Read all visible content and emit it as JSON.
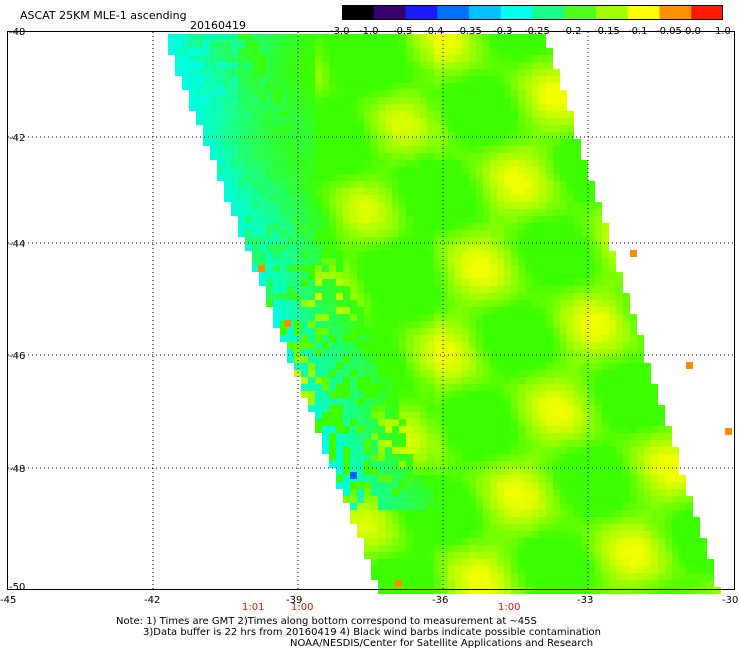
{
  "header": {
    "title": "ASCAT 25KM MLE-1 ascending",
    "date": "20160419"
  },
  "colorbar": {
    "labels": [
      "-3.0",
      "-1.0",
      "-0.5",
      "-0.4",
      "-0.35",
      "-0.3",
      "-0.25",
      "-0.2",
      "-0.15",
      "-0.1",
      "-0.05",
      "0.0",
      "1.0"
    ],
    "colors": [
      "#000000",
      "#3a006b",
      "#1a1aff",
      "#0070ff",
      "#00c0ff",
      "#00ffee",
      "#18ff88",
      "#4dff1a",
      "#a0ff00",
      "#ffff00",
      "#ff9000",
      "#ff1a00"
    ]
  },
  "axes": {
    "lat_labels": [
      "-40",
      "-42",
      "-44",
      "-46",
      "-48",
      "-50"
    ],
    "lon_labels": [
      "-45",
      "-42",
      "-39",
      "-36",
      "-33",
      "-30"
    ],
    "grid": "dotted"
  },
  "times": [
    "1:01",
    "1:00",
    "1:00"
  ],
  "notes": {
    "line1": "Note: 1) Times are GMT 2)Times along bottom correspond to measurement at ~45S",
    "line2": "3)Data buffer is 22 hrs from 20160419 4) Black wind barbs indicate possible contamination",
    "line3": "NOAA/NESDIS/Center for Satellite Applications and Research"
  },
  "field_colors": {
    "cyan": "#00ffe6",
    "green": "#3cff00",
    "yellow": "#f0ff00",
    "orange": "#ff8c00"
  }
}
